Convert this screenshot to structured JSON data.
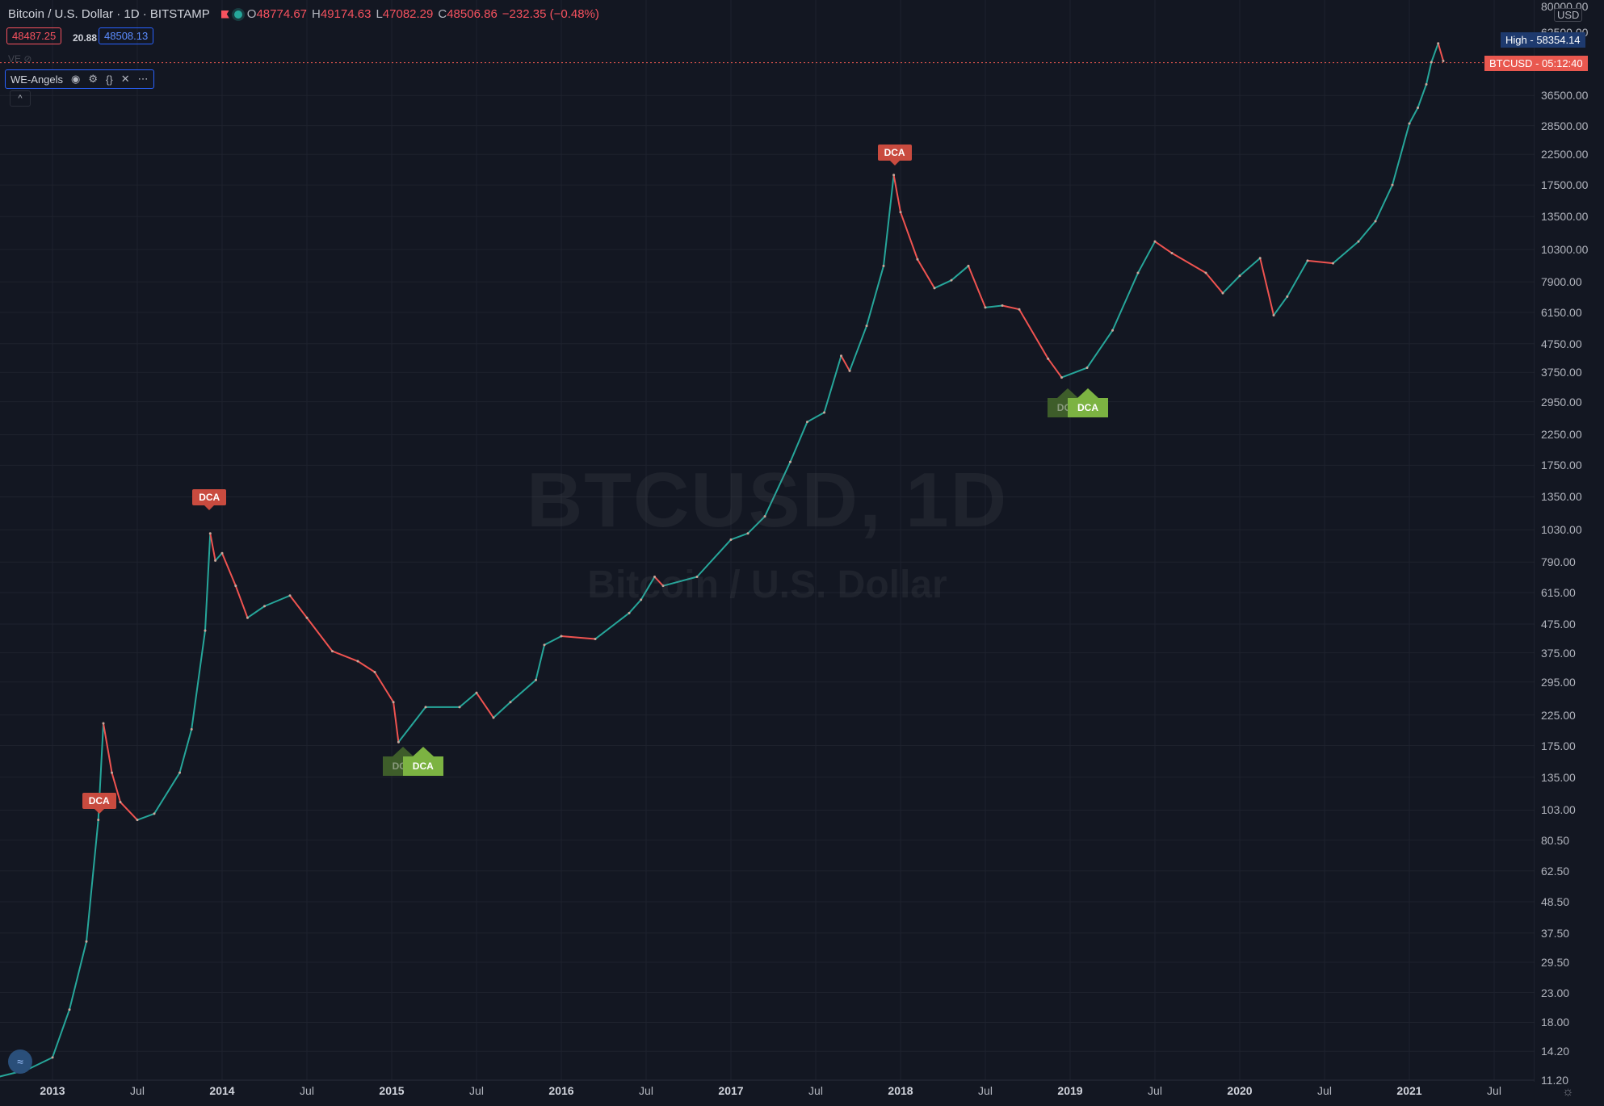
{
  "header": {
    "title": "Bitcoin / U.S. Dollar · 1D · BITSTAMP",
    "open": "48774.67",
    "high": "49174.63",
    "low": "47082.29",
    "close": "48506.86",
    "change": "−232.35 (−0.48%)",
    "bid": "48487.25",
    "spread": "20.88",
    "ask": "48508.13",
    "ve": "VE"
  },
  "indicator": {
    "name": "WE-Angels",
    "icons": [
      "eye-icon",
      "gear-icon",
      "braces-icon",
      "close-icon",
      "more-icon"
    ],
    "collapse": "^"
  },
  "watermark": {
    "symbol": "BTCUSD, 1D",
    "name": "Bitcoin / U.S. Dollar"
  },
  "badges": {
    "high_label": "High",
    "high_value": "58354.14",
    "symbol": "BTCUSD",
    "countdown": "05:12:40",
    "axis_unit": "USD",
    "axis_top": "80000.00",
    "axis_second": "62500.00"
  },
  "colors": {
    "background": "#131722",
    "up": "#26a69a",
    "down": "#ef5350",
    "sell_marker": "#c94b3f",
    "buy_marker": "#7cb342"
  },
  "chart_data": {
    "type": "line",
    "title": "BTCUSD, 1D",
    "scale": "log",
    "ylim": [
      11.2,
      80000
    ],
    "y_ticks": [
      "36500.00",
      "28500.00",
      "22500.00",
      "17500.00",
      "13500.00",
      "10300.00",
      "7900.00",
      "6150.00",
      "4750.00",
      "3750.00",
      "2950.00",
      "2250.00",
      "1750.00",
      "1350.00",
      "1030.00",
      "790.00",
      "615.00",
      "475.00",
      "375.00",
      "295.00",
      "225.00",
      "175.00",
      "135.00",
      "103.00",
      "80.50",
      "62.50",
      "48.50",
      "37.50",
      "29.50",
      "23.00",
      "18.00",
      "14.20",
      "11.20"
    ],
    "x_ticks": [
      "2013",
      "Jul",
      "2014",
      "Jul",
      "2015",
      "Jul",
      "2016",
      "Jul",
      "2017",
      "Jul",
      "2018",
      "Jul",
      "2019",
      "Jul",
      "2020",
      "Jul",
      "2021",
      "Jul"
    ],
    "x_tick_bold": [
      true,
      false,
      true,
      false,
      true,
      false,
      true,
      false,
      true,
      false,
      true,
      false,
      true,
      false,
      true,
      false,
      true,
      false
    ],
    "series": [
      {
        "x": [
          2012.68,
          2012.85,
          2013.0,
          2013.1,
          2013.2,
          2013.27,
          2013.3,
          2013.35,
          2013.4,
          2013.5,
          2013.6,
          2013.75,
          2013.82,
          2013.9,
          2013.93,
          2013.96,
          2014.0,
          2014.08,
          2014.15,
          2014.25,
          2014.4,
          2014.5,
          2014.65,
          2014.8,
          2014.9,
          2015.01,
          2015.04,
          2015.2,
          2015.4,
          2015.5,
          2015.6,
          2015.7,
          2015.85,
          2015.9,
          2016.0,
          2016.2,
          2016.4,
          2016.47,
          2016.55,
          2016.6,
          2016.8,
          2017.0,
          2017.1,
          2017.2,
          2017.35,
          2017.45,
          2017.55,
          2017.65,
          2017.7,
          2017.8,
          2017.9,
          2017.96,
          2018.0,
          2018.1,
          2018.2,
          2018.3,
          2018.4,
          2018.5,
          2018.6,
          2018.7,
          2018.87,
          2018.95,
          2019.1,
          2019.25,
          2019.4,
          2019.5,
          2019.6,
          2019.8,
          2019.9,
          2020.0,
          2020.12,
          2020.2,
          2020.28,
          2020.4,
          2020.55,
          2020.7,
          2020.8,
          2020.9,
          2021.0,
          2021.05,
          2021.1,
          2021.13,
          2021.17,
          2021.2
        ],
        "y": [
          11.5,
          12.2,
          13.5,
          20,
          35,
          95,
          210,
          140,
          110,
          95,
          100,
          140,
          200,
          450,
          1000,
          800,
          850,
          650,
          500,
          550,
          600,
          500,
          380,
          350,
          320,
          250,
          180,
          240,
          240,
          270,
          220,
          250,
          300,
          400,
          430,
          420,
          520,
          580,
          700,
          650,
          700,
          950,
          1000,
          1150,
          1800,
          2500,
          2700,
          4300,
          3800,
          5500,
          9000,
          19000,
          14000,
          9500,
          7500,
          8000,
          9000,
          6400,
          6500,
          6300,
          4200,
          3600,
          3900,
          5300,
          8500,
          11000,
          10000,
          8500,
          7200,
          8300,
          9600,
          6000,
          7000,
          9400,
          9200,
          11000,
          13000,
          17500,
          29000,
          33000,
          40000,
          48000,
          56000,
          48500
        ]
      }
    ],
    "markers": [
      {
        "label": "DCA",
        "type": "sell",
        "x": 2013.27,
        "y": 95
      },
      {
        "label": "DCA",
        "type": "sell",
        "x": 2013.92,
        "y": 1150
      },
      {
        "label": "DCA",
        "type": "buy",
        "x": 2015.06,
        "y": 165
      },
      {
        "label": "DCA",
        "type": "buy",
        "x": 2015.18,
        "y": 165
      },
      {
        "label": "DCA",
        "type": "sell",
        "x": 2017.96,
        "y": 19500
      },
      {
        "label": "DCA",
        "type": "buy",
        "x": 2018.98,
        "y": 3150
      },
      {
        "label": "DCA",
        "type": "buy",
        "x": 2019.1,
        "y": 3150
      }
    ]
  }
}
